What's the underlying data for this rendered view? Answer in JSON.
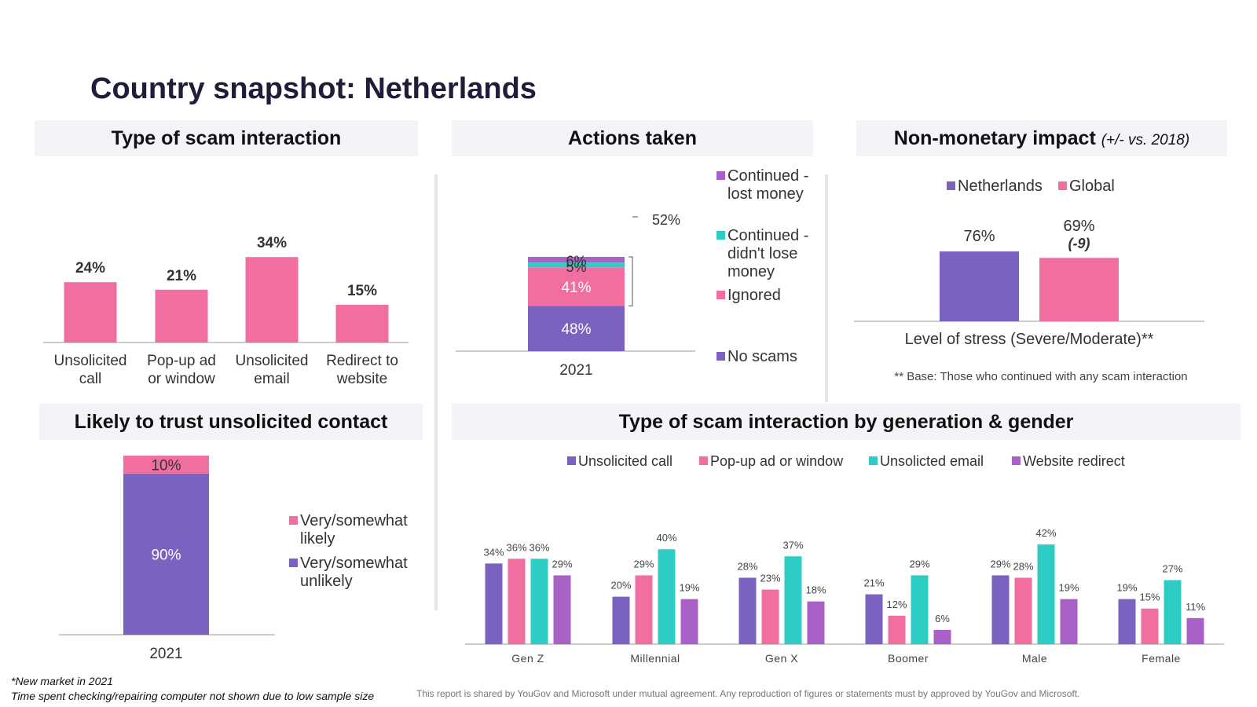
{
  "page": {
    "title": "Country snapshot: Netherlands"
  },
  "colors": {
    "purple": "#7b62c1",
    "pink": "#f06fa0",
    "teal": "#2dcdc6",
    "violet": "#a961c8",
    "axis": "#cccccc"
  },
  "panels": {
    "scam_type": "Type of scam interaction",
    "actions": "Actions taken",
    "impact": "Non-monetary impact",
    "impact_sub": "(+/- vs. 2018)",
    "trust": "Likely to trust unsolicited contact",
    "generation": "Type of scam interaction by generation & gender"
  },
  "footnotes": {
    "line1": "*New market in 2021",
    "line2": "Time spent checking/repairing computer not shown due to low sample size",
    "disclaimer": "This report is shared by YouGov and Microsoft under mutual agreement. Any reproduction of figures or statements must by approved by YouGov and Microsoft."
  },
  "chart_data": [
    {
      "id": "scam_type",
      "type": "bar",
      "title": "Type of scam interaction",
      "categories": [
        [
          "Unsolicited",
          "call"
        ],
        [
          "Pop-up ad",
          "or window"
        ],
        [
          "Unsolicited",
          "email"
        ],
        [
          "Redirect to",
          "website"
        ]
      ],
      "values": [
        24,
        21,
        34,
        15
      ],
      "value_labels": [
        "24%",
        "21%",
        "34%",
        "15%"
      ],
      "ylim": [
        0,
        40
      ]
    },
    {
      "id": "actions",
      "type": "bar",
      "stacked": true,
      "title": "Actions taken",
      "categories": [
        "2021"
      ],
      "series": [
        {
          "name": "No scams",
          "values": [
            48
          ],
          "label": "48%"
        },
        {
          "name": "Ignored",
          "values": [
            41
          ],
          "label": "41%"
        },
        {
          "name": "Continued - didn't lose money",
          "values": [
            5
          ],
          "label": "5%"
        },
        {
          "name": "Continued - lost money",
          "values": [
            6
          ],
          "label": "6%"
        }
      ],
      "bracket_label": "52%",
      "legend": [
        [
          "Continued -",
          "lost money"
        ],
        [
          "Continued -",
          "didn't lose",
          "money"
        ],
        [
          "Ignored"
        ],
        [
          "No scams"
        ]
      ]
    },
    {
      "id": "impact",
      "type": "bar",
      "title": "Non-monetary impact (+/- vs. 2018)",
      "category": "Level of stress (Severe/Moderate)**",
      "series": [
        {
          "name": "Netherlands",
          "value": 76,
          "label": "76%"
        },
        {
          "name": "Global",
          "value": 69,
          "label": "69%",
          "change": "(-9)"
        }
      ],
      "note": "** Base: Those who continued with any scam interaction"
    },
    {
      "id": "trust",
      "type": "bar",
      "stacked": true,
      "title": "Likely to trust unsolicited contact",
      "categories": [
        "2021"
      ],
      "series": [
        {
          "name": "Very/somewhat unlikely",
          "values": [
            90
          ],
          "label": "90%"
        },
        {
          "name": "Very/somewhat likely",
          "values": [
            10
          ],
          "label": "10%"
        }
      ],
      "legend": [
        [
          "Very/somewhat",
          "likely"
        ],
        [
          "Very/somewhat",
          "unlikely"
        ]
      ]
    },
    {
      "id": "generation",
      "type": "bar",
      "title": "Type of scam interaction by generation & gender",
      "categories": [
        "Gen Z",
        "Millennial",
        "Gen X",
        "Boomer",
        "Male",
        "Female"
      ],
      "series": [
        {
          "name": "Unsolicited call",
          "values": [
            34,
            20,
            28,
            21,
            29,
            19
          ]
        },
        {
          "name": "Pop-up ad or window",
          "values": [
            36,
            29,
            23,
            12,
            28,
            15
          ]
        },
        {
          "name": "Unsolicted email",
          "values": [
            36,
            40,
            37,
            29,
            42,
            27
          ]
        },
        {
          "name": "Website redirect",
          "values": [
            29,
            19,
            18,
            6,
            19,
            11
          ]
        }
      ],
      "ylim": [
        0,
        45
      ]
    }
  ]
}
